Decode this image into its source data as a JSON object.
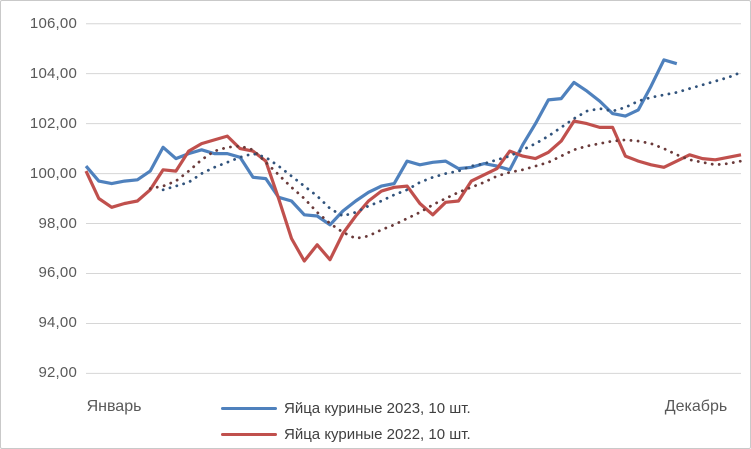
{
  "chart_data": {
    "type": "line",
    "title": "",
    "grid": "horizontal",
    "x_axis": {
      "left_label": "Январь",
      "right_label": "Декабрь",
      "weeks": 52
    },
    "y_axis": {
      "min": 92,
      "max": 106,
      "step": 2,
      "tick_labels": [
        "106,00",
        "104,00",
        "102,00",
        "100,00",
        "98,00",
        "96,00",
        "94,00",
        "92,00"
      ]
    },
    "colors": {
      "blue_solid": "#4f81bd",
      "red_solid": "#c0504d",
      "blue_dotted": "#31537c",
      "red_dotted": "#6a3a3a",
      "gridline": "#d6d6d6",
      "axis_text": "#595959"
    },
    "legend": {
      "position": "bottom",
      "entries": [
        {
          "label": "Яйца куриные 2023, 10 шт.",
          "color": "#4f81bd",
          "style": "solid"
        },
        {
          "label": "Яйца куриные 2022, 10 шт.",
          "color": "#c0504d",
          "style": "solid"
        }
      ]
    },
    "series": [
      {
        "id": "2023-solid",
        "color": "#4f81bd",
        "style": "solid",
        "values": [
          100.3,
          99.7,
          99.6,
          99.7,
          99.75,
          100.1,
          101.05,
          100.6,
          100.8,
          100.95,
          100.8,
          100.8,
          100.65,
          99.85,
          99.8,
          99.05,
          98.9,
          98.35,
          98.3,
          97.95,
          98.5,
          98.9,
          99.25,
          99.5,
          99.6,
          100.5,
          100.35,
          100.45,
          100.5,
          100.2,
          100.25,
          100.4,
          100.3,
          100.15,
          101.15,
          102.0,
          102.95,
          103.0,
          103.65,
          103.3,
          102.9,
          102.4,
          102.3,
          102.55,
          103.5,
          104.55,
          104.4,
          null,
          null,
          null,
          null,
          null
        ]
      },
      {
        "id": "2022-solid",
        "color": "#c0504d",
        "style": "solid",
        "values": [
          100.1,
          99.0,
          98.65,
          98.8,
          98.9,
          99.35,
          100.15,
          100.1,
          100.9,
          101.2,
          101.35,
          101.5,
          101.0,
          100.9,
          100.5,
          99.0,
          97.4,
          96.5,
          97.15,
          96.55,
          97.6,
          98.3,
          98.9,
          99.3,
          99.45,
          99.5,
          98.8,
          98.35,
          98.85,
          98.9,
          99.7,
          99.95,
          100.2,
          100.9,
          100.7,
          100.6,
          100.85,
          101.3,
          102.1,
          102.0,
          101.85,
          101.85,
          100.7,
          100.5,
          100.35,
          100.25,
          100.5,
          100.75,
          100.6,
          100.55,
          100.65,
          100.75
        ]
      },
      {
        "id": "2023-dotted-trend",
        "color": "#31537c",
        "style": "dotted",
        "values": [
          null,
          null,
          null,
          null,
          null,
          null,
          99.35,
          99.5,
          99.65,
          100.0,
          100.25,
          100.45,
          100.65,
          100.8,
          100.65,
          100.3,
          99.9,
          99.5,
          99.1,
          98.6,
          98.3,
          98.45,
          98.7,
          98.9,
          99.15,
          99.35,
          99.65,
          99.85,
          100.0,
          100.1,
          100.3,
          100.4,
          100.55,
          100.7,
          100.95,
          101.2,
          101.5,
          101.85,
          102.2,
          102.5,
          102.6,
          102.5,
          102.65,
          102.9,
          103.05,
          103.15,
          103.25,
          103.4,
          103.55,
          103.7,
          103.85,
          104.05
        ]
      },
      {
        "id": "2022-dotted-trend",
        "color": "#6a3a3a",
        "style": "dotted",
        "values": [
          null,
          null,
          null,
          null,
          null,
          99.4,
          99.5,
          99.7,
          100.1,
          100.55,
          100.9,
          101.05,
          101.1,
          100.95,
          100.45,
          99.95,
          99.45,
          99.0,
          98.45,
          98.0,
          97.65,
          97.4,
          97.5,
          97.75,
          97.95,
          98.2,
          98.45,
          98.75,
          99.0,
          99.25,
          99.45,
          99.65,
          99.9,
          100.05,
          100.15,
          100.3,
          100.45,
          100.7,
          100.95,
          101.1,
          101.2,
          101.3,
          101.35,
          101.3,
          101.2,
          101.0,
          100.75,
          100.55,
          100.45,
          100.35,
          100.4,
          100.5
        ]
      }
    ]
  }
}
